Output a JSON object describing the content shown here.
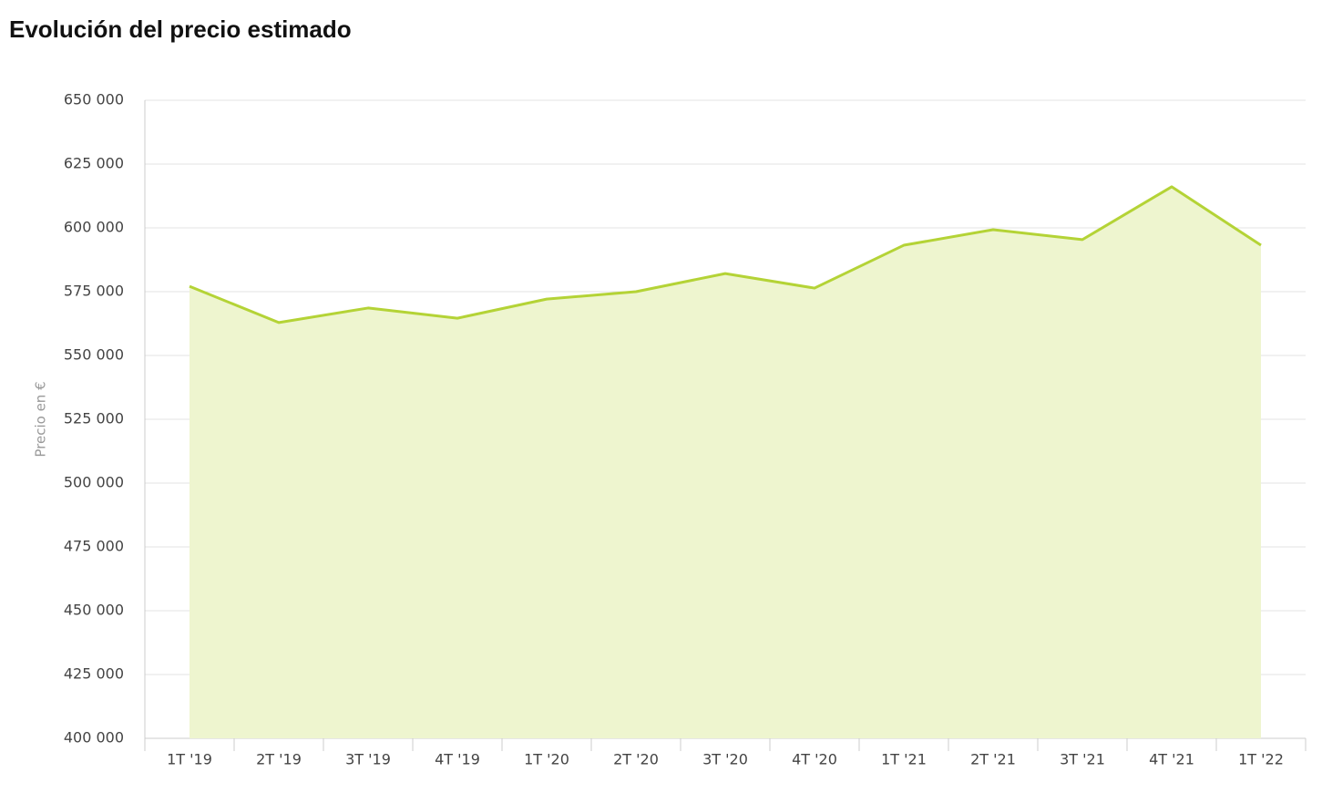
{
  "chart_data": {
    "type": "area",
    "title": "Evolución del precio estimado",
    "y_label": "Precio en €",
    "categories": [
      "1T '19",
      "2T '19",
      "3T '19",
      "4T '19",
      "1T '20",
      "2T '20",
      "3T '20",
      "4T '20",
      "1T '21",
      "2T '21",
      "3T '21",
      "4T '21",
      "1T '22"
    ],
    "values": [
      577100,
      562900,
      568600,
      564600,
      572100,
      575000,
      582100,
      576400,
      593200,
      599300,
      595400,
      616100,
      593200
    ],
    "color": "#b4d336",
    "fill": "#eef5cf",
    "ylim": [
      400000,
      650000
    ],
    "yticks": [
      {
        "value": 400000,
        "label": "400 000"
      },
      {
        "value": 425000,
        "label": "425 000"
      },
      {
        "value": 450000,
        "label": "450 000"
      },
      {
        "value": 475000,
        "label": "475 000"
      },
      {
        "value": 500000,
        "label": "500 000"
      },
      {
        "value": 525000,
        "label": "525 000"
      },
      {
        "value": 550000,
        "label": "550 000"
      },
      {
        "value": 575000,
        "label": "575 000"
      },
      {
        "value": 600000,
        "label": "600 000"
      },
      {
        "value": 625000,
        "label": "625 000"
      },
      {
        "value": 650000,
        "label": "650 000"
      }
    ],
    "grid": true
  }
}
